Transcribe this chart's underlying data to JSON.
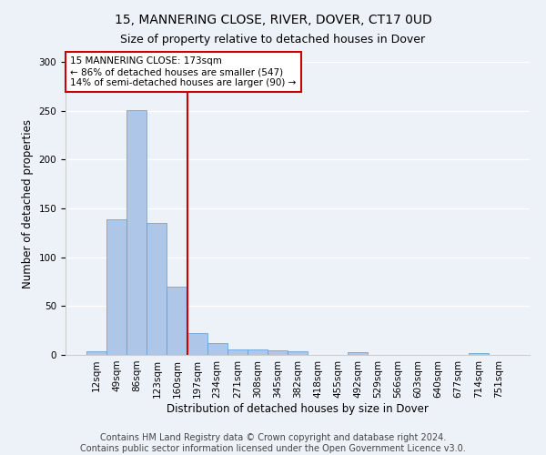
{
  "title": "15, MANNERING CLOSE, RIVER, DOVER, CT17 0UD",
  "subtitle": "Size of property relative to detached houses in Dover",
  "xlabel": "Distribution of detached houses by size in Dover",
  "ylabel": "Number of detached properties",
  "categories": [
    "12sqm",
    "49sqm",
    "86sqm",
    "123sqm",
    "160sqm",
    "197sqm",
    "234sqm",
    "271sqm",
    "308sqm",
    "345sqm",
    "382sqm",
    "418sqm",
    "455sqm",
    "492sqm",
    "529sqm",
    "566sqm",
    "603sqm",
    "640sqm",
    "677sqm",
    "714sqm",
    "751sqm"
  ],
  "values": [
    4,
    139,
    251,
    135,
    70,
    22,
    12,
    6,
    6,
    5,
    4,
    0,
    0,
    3,
    0,
    0,
    0,
    0,
    0,
    2,
    0
  ],
  "bar_color": "#aec6e8",
  "bar_edge_color": "#5a9bd5",
  "annotation_text_line1": "15 MANNERING CLOSE: 173sqm",
  "annotation_text_line2": "← 86% of detached houses are smaller (547)",
  "annotation_text_line3": "14% of semi-detached houses are larger (90) →",
  "annotation_box_color": "#ffffff",
  "annotation_box_edge_color": "#cc0000",
  "vline_color": "#cc0000",
  "vline_x": 4.5,
  "ylim": [
    0,
    310
  ],
  "yticks": [
    0,
    50,
    100,
    150,
    200,
    250,
    300
  ],
  "footer": "Contains HM Land Registry data © Crown copyright and database right 2024.\nContains public sector information licensed under the Open Government Licence v3.0.",
  "background_color": "#edf2f9",
  "grid_color": "#ffffff",
  "title_fontsize": 10,
  "subtitle_fontsize": 9,
  "axis_label_fontsize": 8.5,
  "tick_fontsize": 7.5,
  "annotation_fontsize": 7.5,
  "footer_fontsize": 7
}
